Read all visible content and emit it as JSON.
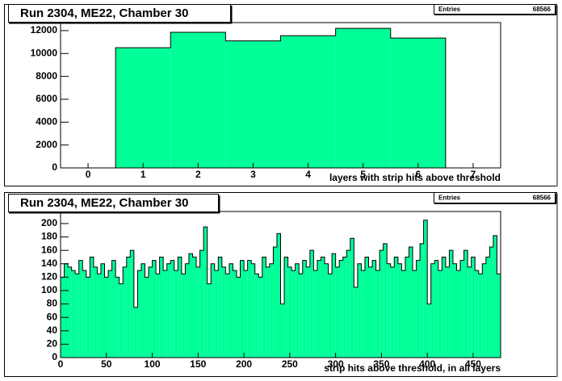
{
  "chart_data": [
    {
      "type": "histogram",
      "title": "Run 2304, ME22, Chamber 30",
      "stats": {
        "label": "Entries",
        "value": 68566
      },
      "x_label": "layers with strip hits above threshold",
      "bins": [
        0.5,
        1.5,
        2.5,
        3.5,
        4.5,
        5.5,
        6.5
      ],
      "values": [
        10500,
        11850,
        11100,
        11550,
        12200,
        11350
      ],
      "color": "#00ff99",
      "xlim": [
        -0.5,
        7.5
      ],
      "xticks": [
        0,
        1,
        2,
        3,
        4,
        5,
        6,
        7
      ],
      "ylim": [
        0,
        12700
      ],
      "yticks": [
        0,
        2000,
        4000,
        6000,
        8000,
        10000,
        12000
      ]
    },
    {
      "type": "histogram",
      "title": "Run 2304, ME22, Chamber 30",
      "stats": {
        "label": "Entries",
        "value": 68566
      },
      "x_label": "strip hits above threshold, in all layers",
      "bins": [
        0,
        4,
        8,
        12,
        16,
        20,
        24,
        28,
        32,
        36,
        40,
        44,
        48,
        52,
        56,
        60,
        64,
        68,
        72,
        76,
        80,
        84,
        88,
        92,
        96,
        100,
        104,
        108,
        112,
        116,
        120,
        124,
        128,
        132,
        136,
        140,
        144,
        148,
        152,
        156,
        160,
        164,
        168,
        172,
        176,
        180,
        184,
        188,
        192,
        196,
        200,
        204,
        208,
        212,
        216,
        220,
        224,
        228,
        232,
        236,
        240,
        244,
        248,
        252,
        256,
        260,
        264,
        268,
        272,
        276,
        280,
        284,
        288,
        292,
        296,
        300,
        304,
        308,
        312,
        316,
        320,
        324,
        328,
        332,
        336,
        340,
        344,
        348,
        352,
        356,
        360,
        364,
        368,
        372,
        376,
        380,
        384,
        388,
        392,
        396,
        400,
        404,
        408,
        412,
        416,
        420,
        424,
        428,
        432,
        436,
        440,
        444,
        448,
        452,
        456,
        460,
        464,
        468,
        472,
        476,
        480
      ],
      "values": [
        120,
        140,
        135,
        130,
        125,
        145,
        130,
        120,
        150,
        135,
        125,
        140,
        120,
        130,
        145,
        120,
        110,
        135,
        150,
        160,
        75,
        130,
        140,
        120,
        135,
        145,
        125,
        150,
        130,
        140,
        145,
        130,
        150,
        125,
        140,
        155,
        150,
        135,
        160,
        195,
        110,
        140,
        130,
        150,
        135,
        125,
        140,
        130,
        120,
        145,
        130,
        145,
        140,
        125,
        120,
        150,
        135,
        140,
        165,
        185,
        80,
        150,
        135,
        130,
        140,
        125,
        145,
        135,
        160,
        130,
        145,
        150,
        140,
        125,
        155,
        135,
        145,
        150,
        160,
        178,
        105,
        140,
        130,
        150,
        135,
        145,
        130,
        160,
        170,
        140,
        135,
        150,
        140,
        130,
        150,
        165,
        130,
        145,
        170,
        205,
        80,
        140,
        145,
        130,
        150,
        135,
        160,
        140,
        130,
        145,
        160,
        135,
        150,
        130,
        125,
        140,
        150,
        165,
        182,
        125
      ],
      "color": "#00ff99",
      "xlim": [
        0,
        480
      ],
      "xticks": [
        0,
        50,
        100,
        150,
        200,
        250,
        300,
        350,
        400,
        450
      ],
      "ylim": [
        0,
        218
      ],
      "yticks": [
        0,
        20,
        40,
        60,
        80,
        100,
        120,
        140,
        160,
        180,
        200
      ]
    }
  ]
}
